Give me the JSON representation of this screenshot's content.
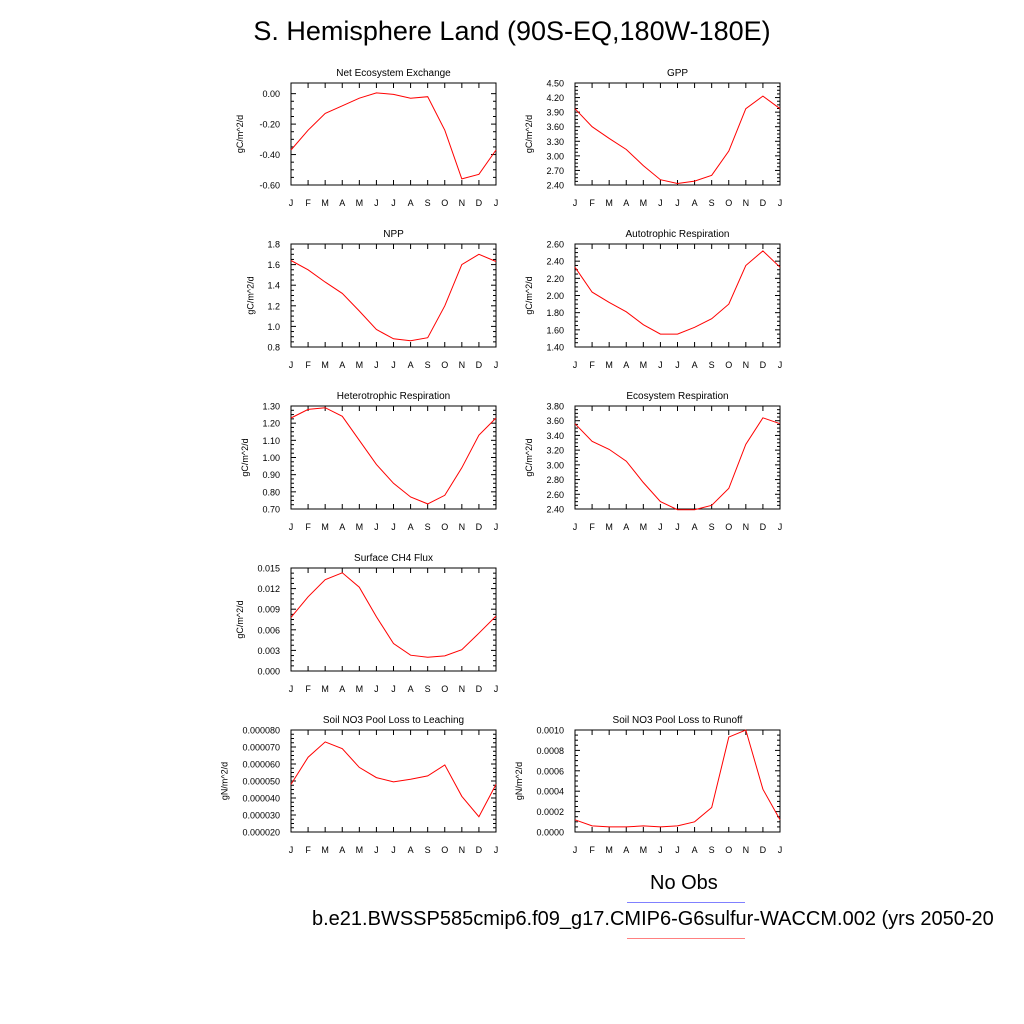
{
  "title": "S. Hemisphere Land (90S-EQ,180W-180E)",
  "legend": {
    "obs_label": "No Obs",
    "model_label": "b.e21.BWSSP585cmip6.f09_g17.CMIP6-G6sulfur-WACCM.002 (yrs 2050-20",
    "obs_color": "#8080ff",
    "model_color": "#ff8080"
  },
  "colors": {
    "series": "#ff0000",
    "axis": "#000000"
  },
  "months": [
    "J",
    "F",
    "M",
    "A",
    "M",
    "J",
    "J",
    "A",
    "S",
    "O",
    "N",
    "D",
    "J"
  ],
  "chart_data": [
    {
      "type": "line",
      "title": "Net Ecosystem Exchange",
      "ylabel": "gC/m^2/d",
      "xlabel": "",
      "ylim": [
        -0.6,
        0.07
      ],
      "yticks": [
        -0.6,
        -0.4,
        -0.2,
        0.0
      ],
      "ytick_labels": [
        "-0.60",
        "-0.40",
        "-0.20",
        "0.00"
      ],
      "x": [
        "J",
        "F",
        "M",
        "A",
        "M",
        "J",
        "J",
        "A",
        "S",
        "O",
        "N",
        "D",
        "J"
      ],
      "values": [
        -0.37,
        -0.24,
        -0.13,
        -0.08,
        -0.03,
        0.005,
        -0.005,
        -0.03,
        -0.02,
        -0.24,
        -0.56,
        -0.53,
        -0.37
      ]
    },
    {
      "type": "line",
      "title": "GPP",
      "ylabel": "gC/m^2/d",
      "xlabel": "",
      "ylim": [
        2.4,
        4.5
      ],
      "yticks": [
        2.4,
        2.7,
        3.0,
        3.3,
        3.6,
        3.9,
        4.2,
        4.5
      ],
      "ytick_labels": [
        "2.40",
        "2.70",
        "3.00",
        "3.30",
        "3.60",
        "3.90",
        "4.20",
        "4.50"
      ],
      "x": [
        "J",
        "F",
        "M",
        "A",
        "M",
        "J",
        "J",
        "A",
        "S",
        "O",
        "N",
        "D",
        "J"
      ],
      "values": [
        3.97,
        3.6,
        3.36,
        3.13,
        2.8,
        2.51,
        2.43,
        2.48,
        2.6,
        3.1,
        3.97,
        4.23,
        3.97
      ]
    },
    {
      "type": "line",
      "title": "NPP",
      "ylabel": "gC/m^2/d",
      "xlabel": "",
      "ylim": [
        0.8,
        1.8
      ],
      "yticks": [
        0.8,
        1.0,
        1.2,
        1.4,
        1.6,
        1.8
      ],
      "ytick_labels": [
        "0.8",
        "1.0",
        "1.2",
        "1.4",
        "1.6",
        "1.8"
      ],
      "x": [
        "J",
        "F",
        "M",
        "A",
        "M",
        "J",
        "J",
        "A",
        "S",
        "O",
        "N",
        "D",
        "J"
      ],
      "values": [
        1.64,
        1.55,
        1.43,
        1.32,
        1.15,
        0.97,
        0.88,
        0.86,
        0.89,
        1.2,
        1.6,
        1.7,
        1.63
      ]
    },
    {
      "type": "line",
      "title": "Autotrophic Respiration",
      "ylabel": "gC/m^2/d",
      "xlabel": "",
      "ylim": [
        1.4,
        2.6
      ],
      "yticks": [
        1.4,
        1.6,
        1.8,
        2.0,
        2.2,
        2.4,
        2.6
      ],
      "ytick_labels": [
        "1.40",
        "1.60",
        "1.80",
        "2.00",
        "2.20",
        "2.40",
        "2.60"
      ],
      "x": [
        "J",
        "F",
        "M",
        "A",
        "M",
        "J",
        "J",
        "A",
        "S",
        "O",
        "N",
        "D",
        "J"
      ],
      "values": [
        2.33,
        2.04,
        1.92,
        1.81,
        1.66,
        1.55,
        1.55,
        1.63,
        1.73,
        1.9,
        2.35,
        2.52,
        2.33
      ]
    },
    {
      "type": "line",
      "title": "Heterotrophic Respiration",
      "ylabel": "gC/m^2/d",
      "xlabel": "",
      "ylim": [
        0.7,
        1.3
      ],
      "yticks": [
        0.7,
        0.8,
        0.9,
        1.0,
        1.1,
        1.2,
        1.3
      ],
      "ytick_labels": [
        "0.70",
        "0.80",
        "0.90",
        "1.00",
        "1.10",
        "1.20",
        "1.30"
      ],
      "x": [
        "J",
        "F",
        "M",
        "A",
        "M",
        "J",
        "J",
        "A",
        "S",
        "O",
        "N",
        "D",
        "J"
      ],
      "values": [
        1.23,
        1.28,
        1.29,
        1.24,
        1.1,
        0.96,
        0.85,
        0.77,
        0.73,
        0.78,
        0.94,
        1.13,
        1.23
      ]
    },
    {
      "type": "line",
      "title": "Ecosystem Respiration",
      "ylabel": "gC/m^2/d",
      "xlabel": "",
      "ylim": [
        2.4,
        3.8
      ],
      "yticks": [
        2.4,
        2.6,
        2.8,
        3.0,
        3.2,
        3.4,
        3.6,
        3.8
      ],
      "ytick_labels": [
        "2.40",
        "2.60",
        "2.80",
        "3.00",
        "3.20",
        "3.40",
        "3.60",
        "3.80"
      ],
      "x": [
        "J",
        "F",
        "M",
        "A",
        "M",
        "J",
        "J",
        "A",
        "S",
        "O",
        "N",
        "D",
        "J"
      ],
      "values": [
        3.56,
        3.32,
        3.21,
        3.05,
        2.76,
        2.5,
        2.39,
        2.39,
        2.45,
        2.68,
        3.28,
        3.64,
        3.56
      ]
    },
    {
      "type": "line",
      "title": "Surface CH4 Flux",
      "ylabel": "gC/m^2/d",
      "xlabel": "",
      "ylim": [
        0.0,
        0.015
      ],
      "yticks": [
        0.0,
        0.003,
        0.006,
        0.009,
        0.012,
        0.015
      ],
      "ytick_labels": [
        "0.000",
        "0.003",
        "0.006",
        "0.009",
        "0.012",
        "0.015"
      ],
      "x": [
        "J",
        "F",
        "M",
        "A",
        "M",
        "J",
        "J",
        "A",
        "S",
        "O",
        "N",
        "D",
        "J"
      ],
      "values": [
        0.0078,
        0.0108,
        0.0133,
        0.0143,
        0.0122,
        0.0079,
        0.004,
        0.0023,
        0.002,
        0.0022,
        0.0031,
        0.0055,
        0.008
      ]
    },
    {
      "type": "line",
      "title": "Soil NO3 Pool Loss to Leaching",
      "ylabel": "gN/m^2/d",
      "xlabel": "",
      "ylim": [
        2e-05,
        8e-05
      ],
      "yticks": [
        2e-05,
        3e-05,
        4e-05,
        5e-05,
        6e-05,
        7e-05,
        8e-05
      ],
      "ytick_labels": [
        "0.000020",
        "0.000030",
        "0.000040",
        "0.000050",
        "0.000060",
        "0.000070",
        "0.000080"
      ],
      "x": [
        "J",
        "F",
        "M",
        "A",
        "M",
        "J",
        "J",
        "A",
        "S",
        "O",
        "N",
        "D",
        "J"
      ],
      "values": [
        4.8e-05,
        6.4e-05,
        7.3e-05,
        6.9e-05,
        5.8e-05,
        5.2e-05,
        4.95e-05,
        5.1e-05,
        5.3e-05,
        5.95e-05,
        4.1e-05,
        2.9e-05,
        4.8e-05
      ]
    },
    {
      "type": "line",
      "title": "Soil NO3 Pool Loss to Runoff",
      "ylabel": "gN/m^2/d",
      "xlabel": "",
      "ylim": [
        0.0,
        0.001
      ],
      "yticks": [
        0.0,
        0.0002,
        0.0004,
        0.0006,
        0.0008,
        0.001
      ],
      "ytick_labels": [
        "0.0000",
        "0.0002",
        "0.0004",
        "0.0006",
        "0.0008",
        "0.0010"
      ],
      "x": [
        "J",
        "F",
        "M",
        "A",
        "M",
        "J",
        "J",
        "A",
        "S",
        "O",
        "N",
        "D",
        "J"
      ],
      "values": [
        0.00012,
        6e-05,
        5e-05,
        5e-05,
        6e-05,
        5e-05,
        6e-05,
        0.0001,
        0.00024,
        0.00093,
        0.001,
        0.00042,
        0.00012
      ]
    }
  ]
}
